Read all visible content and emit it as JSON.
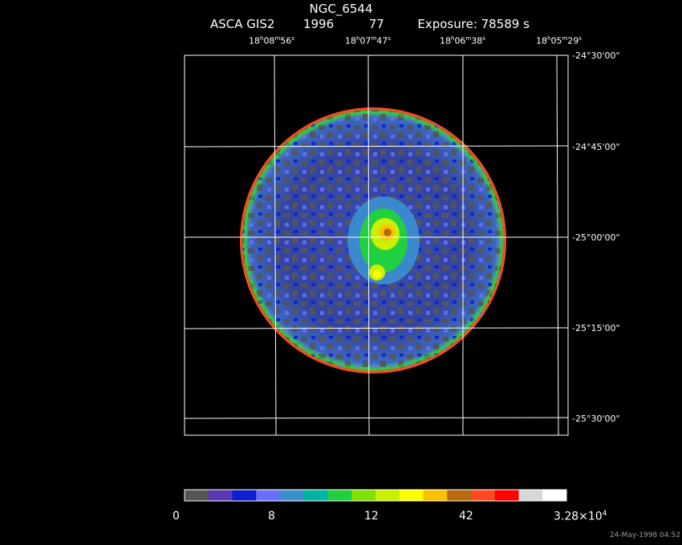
{
  "header": {
    "title": "NGC_6544",
    "instrument": "ASCA GIS2",
    "year": "1996",
    "number": "77",
    "exposure": "Exposure: 78589 s"
  },
  "ra_ticks": [
    {
      "h": "18",
      "hs": "h",
      "m": "08",
      "ms": "m",
      "s": "56",
      "ss": "s"
    },
    {
      "h": "18",
      "hs": "h",
      "m": "07",
      "ms": "m",
      "s": "47",
      "ss": "s"
    },
    {
      "h": "18",
      "hs": "h",
      "m": "06",
      "ms": "m",
      "s": "38",
      "ss": "s"
    },
    {
      "h": "18",
      "hs": "h",
      "m": "05",
      "ms": "m",
      "s": "29",
      "ss": "s"
    }
  ],
  "dec_ticks": [
    "-24°30'00\"",
    "-24°45'00\"",
    "-25°00'00\"",
    "-25°15'00\"",
    "-25°30'00\""
  ],
  "colorbar": {
    "colors": [
      "#555555",
      "#5a3ab0",
      "#0c1fd0",
      "#6a70f5",
      "#3b8fd0",
      "#00b4a0",
      "#20d040",
      "#80e000",
      "#c8f000",
      "#ffff00",
      "#ffc000",
      "#b86a10",
      "#ff4a20",
      "#ff0000",
      "#d8d8d8",
      "#ffffff"
    ],
    "labels": [
      "0",
      "8",
      "12",
      "42",
      "3.28×10"
    ],
    "label_exponent": "4"
  },
  "footer": {
    "date": "24-May-1998 04:52"
  }
}
